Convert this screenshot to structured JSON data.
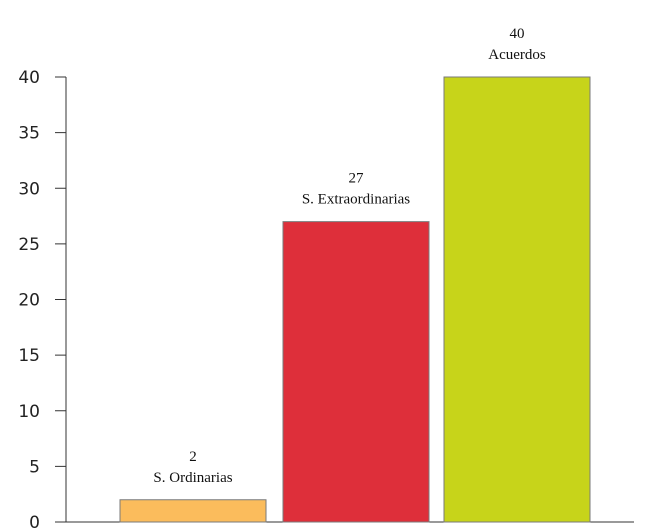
{
  "chart_data": {
    "type": "bar",
    "title": "",
    "xlabel": "",
    "ylabel": "",
    "categories": [
      "S. Ordinarias",
      "S. Extraordinarias",
      "Acuerdos"
    ],
    "values": [
      2,
      27,
      40
    ],
    "value_labels": [
      "2",
      "27",
      "40"
    ],
    "colors": [
      "#fbbc5c",
      "#de2f3a",
      "#c7d41a"
    ],
    "ylim": [
      0,
      40
    ],
    "yticks": [
      0,
      5,
      10,
      15,
      20,
      25,
      30,
      35,
      40
    ],
    "ytick_labels": [
      "0",
      "5",
      "10",
      "15",
      "20",
      "25",
      "30",
      "35",
      "40"
    ],
    "grid": false,
    "legend": "none"
  }
}
